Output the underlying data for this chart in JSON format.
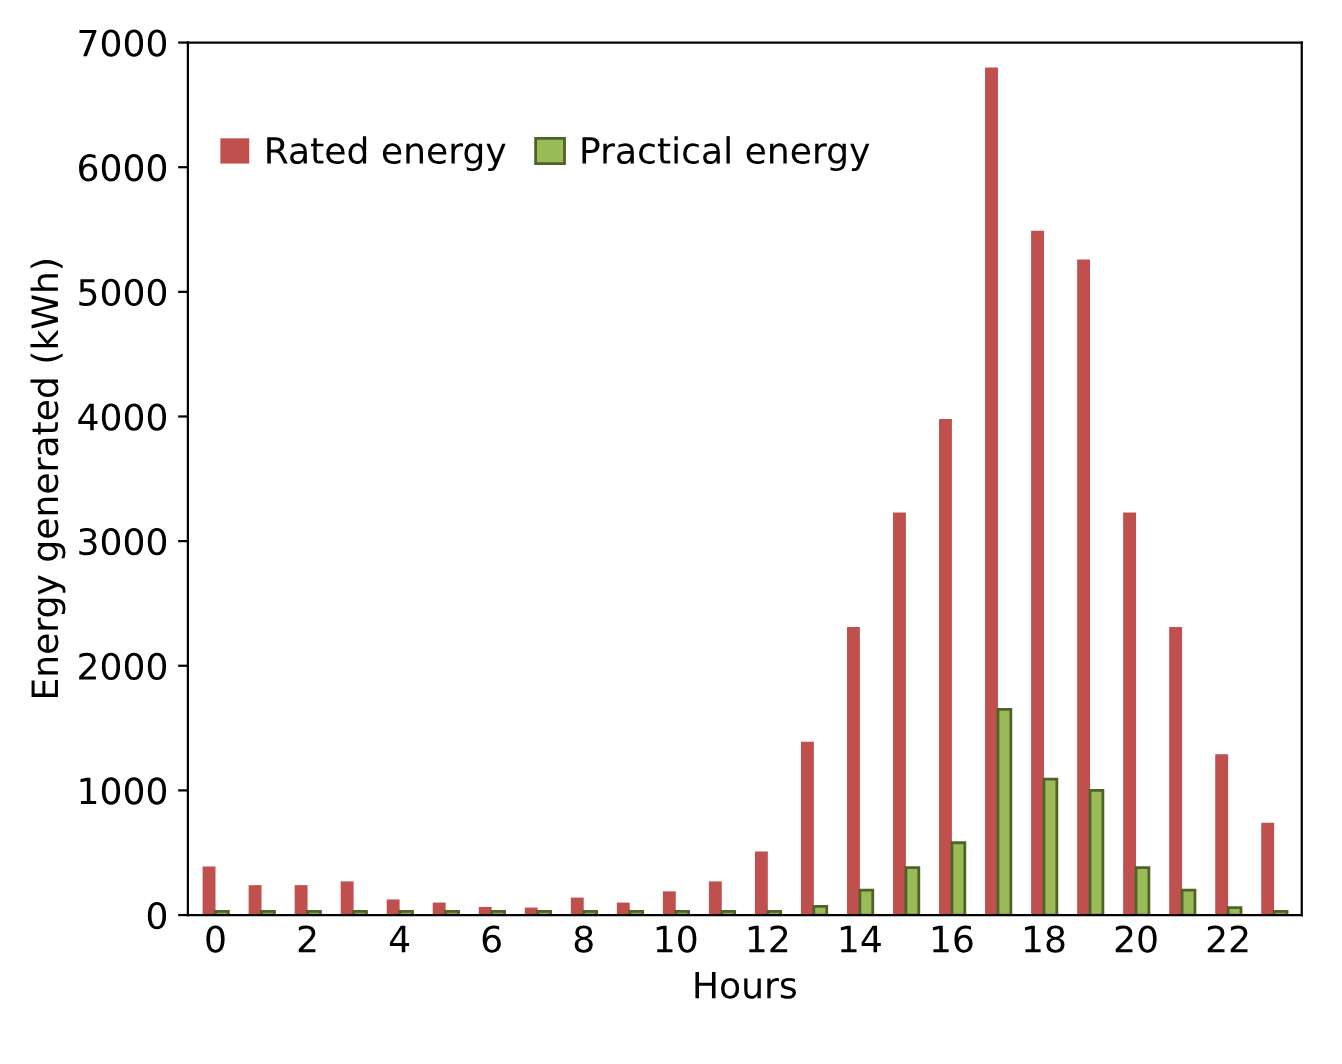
{
  "chart_data": {
    "type": "bar",
    "xlabel": "Hours",
    "ylabel": "Energy generated (kWh)",
    "categories": [
      "0",
      null,
      "2",
      null,
      "4",
      null,
      "6",
      null,
      "8",
      null,
      "10",
      null,
      "12",
      null,
      "14",
      null,
      "16",
      null,
      "18",
      null,
      "20",
      null,
      "22",
      null
    ],
    "series": [
      {
        "name": "Rated energy",
        "color": "#c0504d",
        "values": [
          390,
          240,
          240,
          270,
          125,
          100,
          65,
          60,
          140,
          100,
          190,
          270,
          510,
          1390,
          2310,
          3230,
          3980,
          6800,
          5490,
          5260,
          3230,
          2310,
          1290,
          740
        ]
      },
      {
        "name": "Practical energy",
        "color": "#9bbb59",
        "values": [
          30,
          30,
          30,
          30,
          30,
          30,
          30,
          30,
          30,
          30,
          30,
          30,
          30,
          70,
          200,
          380,
          580,
          1650,
          1090,
          1000,
          380,
          200,
          60,
          30
        ]
      }
    ],
    "ylim": [
      0,
      7000
    ],
    "yticks": [
      0,
      1000,
      2000,
      3000,
      4000,
      5000,
      6000,
      7000
    ],
    "grid": false,
    "legend": "top left"
  }
}
